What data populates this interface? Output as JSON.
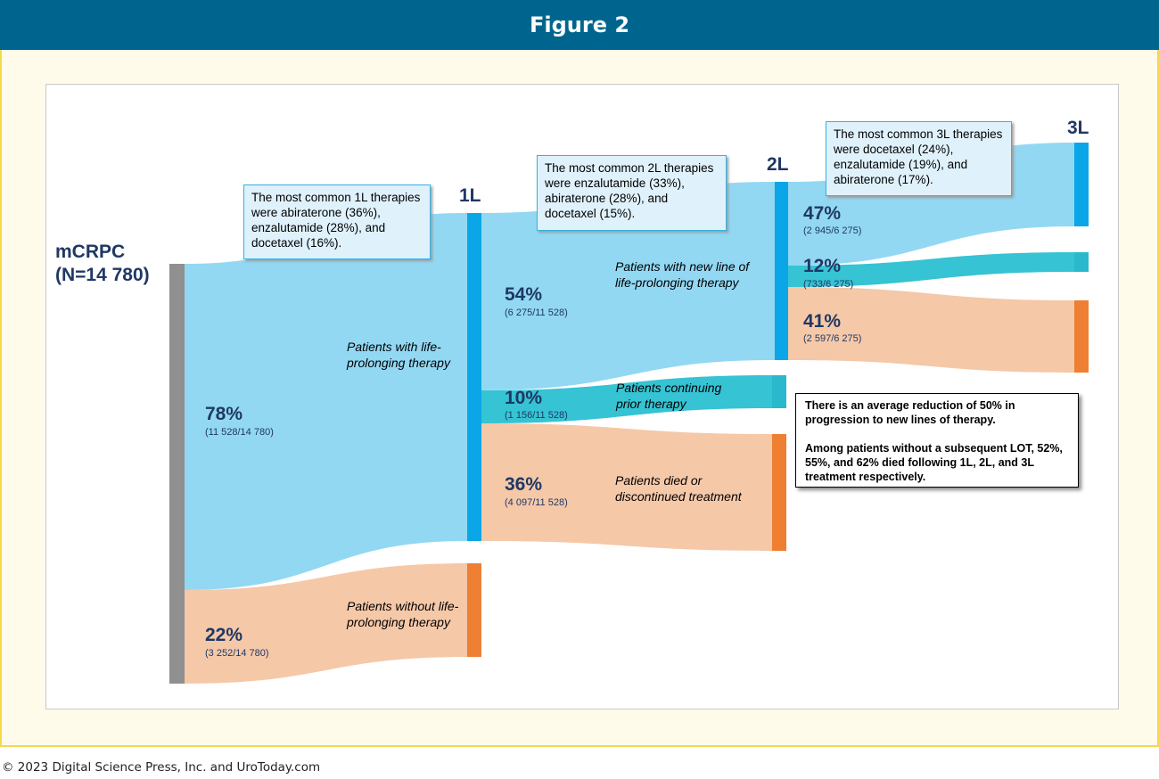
{
  "header": {
    "title": "Figure 2"
  },
  "root": {
    "label": "mCRPC",
    "n_label": "(N=14 780)"
  },
  "columns": {
    "l1": "1L",
    "l2": "2L",
    "l3": "3L"
  },
  "flows": {
    "root_to_1l": {
      "pct": "78%",
      "count": "(11 528/14 780)",
      "label": "Patients with life-prolonging therapy"
    },
    "root_no_therapy": {
      "pct": "22%",
      "count": "(3 252/14 780)",
      "label": "Patients without life-prolonging therapy"
    },
    "l1_to_2l": {
      "pct": "54%",
      "count": "(6 275/11 528)",
      "label": "Patients with new line of life-prolonging therapy"
    },
    "l1_continue": {
      "pct": "10%",
      "count": "(1 156/11 528)",
      "label": "Patients continuing prior therapy"
    },
    "l1_died": {
      "pct": "36%",
      "count": "(4 097/11 528)",
      "label": "Patients died or discontinued treatment"
    },
    "l2_to_3l": {
      "pct": "47%",
      "count": "(2 945/6 275)"
    },
    "l2_continue": {
      "pct": "12%",
      "count": "(733/6 275)"
    },
    "l2_died": {
      "pct": "41%",
      "count": "(2 597/6 275)"
    }
  },
  "notes": {
    "l1": "The most common 1L therapies were abiraterone (36%), enzalutamide (28%), and docetaxel (16%).",
    "l2": "The most common 2L therapies were enzalutamide (33%), abiraterone (28%), and docetaxel (15%).",
    "l3": "The most common 3L therapies were docetaxel (24%), enzalutamide (19%), and abiraterone (17%)."
  },
  "summary": {
    "p1": "There is an average reduction of 50% in progression to new lines of therapy.",
    "p2": "Among patients without a subsequent LOT, 52%, 55%, and 62% died following 1L, 2L, and 3L treatment respectively."
  },
  "colors": {
    "header": "#00658e",
    "frame_border": "#f6d94a",
    "frame_fill": "#fffbea",
    "flow_therapy": "#92d8f3",
    "flow_continue": "#36c3d3",
    "flow_died": "#f5c8a8",
    "node_root": "#909090",
    "node_therapy": "#0aa6e8",
    "node_continue": "#2ab8cc",
    "node_died": "#ee7f33",
    "text_dark": "#1f3864"
  },
  "copyright": "© 2023 Digital Science Press, Inc. and UroToday.com"
}
